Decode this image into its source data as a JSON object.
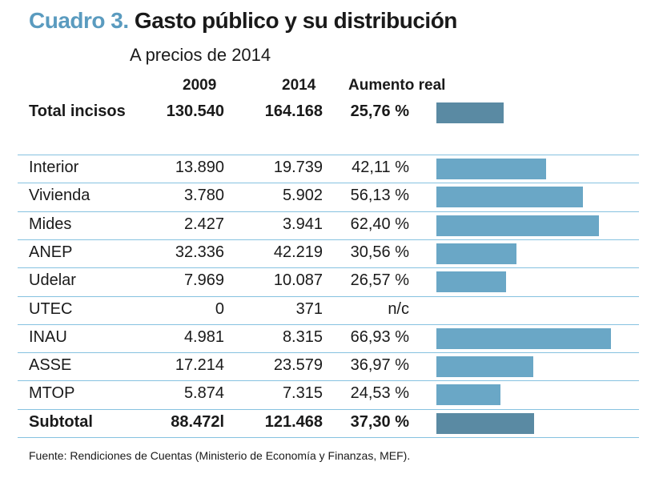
{
  "title": {
    "lead": "Cuadro 3.",
    "main": "Gasto público y su distribución"
  },
  "subtitle": "A precios de 2014",
  "headers": {
    "col_2009": "2009",
    "col_2014": "2014",
    "col_pct": "Aumento real"
  },
  "colors": {
    "total_bar": "#5a8aa3",
    "row_bar": "#6aa7c6",
    "subtotal_bar": "#5a8aa3",
    "divider": "#86c2e0",
    "title_accent": "#5a9bbf"
  },
  "total": {
    "name": "Total incisos",
    "v2009": "130.540",
    "v2014": "164.168",
    "pct_label": "25,76 %",
    "pct": 25.76
  },
  "rows": [
    {
      "name": "Interior",
      "v2009": "13.890",
      "v2014": "19.739",
      "pct_label": "42,11 %",
      "pct": 42.11
    },
    {
      "name": "Vivienda",
      "v2009": "3.780",
      "v2014": "5.902",
      "pct_label": "56,13 %",
      "pct": 56.13
    },
    {
      "name": "Mides",
      "v2009": "2.427",
      "v2014": "3.941",
      "pct_label": "62,40 %",
      "pct": 62.4
    },
    {
      "name": "ANEP",
      "v2009": "32.336",
      "v2014": "42.219",
      "pct_label": "30,56 %",
      "pct": 30.56
    },
    {
      "name": "Udelar",
      "v2009": "7.969",
      "v2014": "10.087",
      "pct_label": "26,57 %",
      "pct": 26.57
    },
    {
      "name": "UTEC",
      "v2009": "0",
      "v2014": "371",
      "pct_label": "n/c",
      "pct": null
    },
    {
      "name": "INAU",
      "v2009": "4.981",
      "v2014": "8.315",
      "pct_label": "66,93 %",
      "pct": 66.93
    },
    {
      "name": "ASSE",
      "v2009": "17.214",
      "v2014": "23.579",
      "pct_label": "36,97 %",
      "pct": 36.97
    },
    {
      "name": "MTOP",
      "v2009": "5.874",
      "v2014": "7.315",
      "pct_label": "24,53 %",
      "pct": 24.53
    }
  ],
  "subtotal": {
    "name": "Subtotal",
    "v2009": "88.472l",
    "v2014": "121.468",
    "pct_label": "37,30 %",
    "pct": 37.3
  },
  "source": "Fuente: Rendiciones de Cuentas (Ministerio de Economía y Finanzas, MEF).",
  "chart_data": {
    "type": "bar",
    "title": "Cuadro 3. Gasto público y su distribución",
    "subtitle": "A precios de 2014",
    "categories": [
      "Total incisos",
      "Interior",
      "Vivienda",
      "Mides",
      "ANEP",
      "Udelar",
      "UTEC",
      "INAU",
      "ASSE",
      "MTOP",
      "Subtotal"
    ],
    "series": [
      {
        "name": "2009",
        "values": [
          130540,
          13890,
          3780,
          2427,
          32336,
          7969,
          0,
          4981,
          17214,
          5874,
          88472
        ]
      },
      {
        "name": "2014",
        "values": [
          164168,
          19739,
          5902,
          3941,
          42219,
          10087,
          371,
          8315,
          23579,
          7315,
          121468
        ]
      },
      {
        "name": "Aumento real (%)",
        "values": [
          25.76,
          42.11,
          56.13,
          62.4,
          30.56,
          26.57,
          null,
          66.93,
          36.97,
          24.53,
          37.3
        ]
      }
    ],
    "xlabel": "",
    "ylabel": "Aumento real (%)",
    "ylim": [
      0,
      70
    ]
  }
}
